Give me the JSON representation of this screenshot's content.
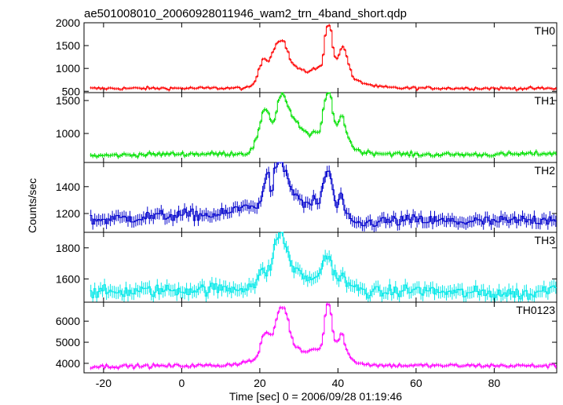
{
  "chart_data": {
    "type": "line",
    "title": "ae501008010_20060928011946_wam2_trn_4band_short.qdp",
    "xlabel": "Time [sec] 0 = 2006/09/28 01:19:46",
    "ylabel": "Counts/sec",
    "xlim": [
      -25,
      96
    ],
    "xticks": [
      -20,
      0,
      20,
      40,
      60,
      80
    ],
    "x_start": -23.5,
    "x_step": 0.5,
    "panels": [
      {
        "name": "TH0",
        "color": "#ff0000",
        "ylim": [
          470,
          2000
        ],
        "yticks": [
          500,
          1000,
          1500,
          2000
        ],
        "baseline": 560,
        "noise": 22,
        "anchors": [
          [
            -23.5,
            560
          ],
          [
            17,
            570
          ],
          [
            18,
            620
          ],
          [
            19,
            760
          ],
          [
            20,
            1020
          ],
          [
            21,
            1260
          ],
          [
            22,
            1150
          ],
          [
            23,
            1300
          ],
          [
            24,
            1500
          ],
          [
            25,
            1620
          ],
          [
            26,
            1640
          ],
          [
            27,
            1400
          ],
          [
            28,
            1150
          ],
          [
            29,
            1050
          ],
          [
            30,
            1000
          ],
          [
            31,
            950
          ],
          [
            32,
            900
          ],
          [
            33,
            980
          ],
          [
            34,
            1000
          ],
          [
            35,
            1000
          ],
          [
            36,
            1100
          ],
          [
            37,
            1900
          ],
          [
            38,
            2000
          ],
          [
            39,
            1300
          ],
          [
            40,
            1200
          ],
          [
            41,
            1500
          ],
          [
            42,
            1380
          ],
          [
            43,
            1000
          ],
          [
            44,
            780
          ],
          [
            45,
            720
          ],
          [
            47,
            670
          ],
          [
            50,
            600
          ],
          [
            55,
            570
          ],
          [
            96,
            560
          ]
        ]
      },
      {
        "name": "TH1",
        "color": "#00e000",
        "ylim": [
          560,
          1620
        ],
        "yticks": [
          1000,
          1500
        ],
        "baseline": 670,
        "noise": 22,
        "anchors": [
          [
            -23.5,
            660
          ],
          [
            -10,
            680
          ],
          [
            0,
            690
          ],
          [
            10,
            690
          ],
          [
            17,
            700
          ],
          [
            18,
            760
          ],
          [
            19,
            900
          ],
          [
            20,
            1100
          ],
          [
            21,
            1350
          ],
          [
            22,
            1380
          ],
          [
            23,
            1150
          ],
          [
            24,
            1250
          ],
          [
            25,
            1560
          ],
          [
            26,
            1620
          ],
          [
            27,
            1450
          ],
          [
            28,
            1300
          ],
          [
            29,
            1200
          ],
          [
            30,
            1120
          ],
          [
            31,
            1050
          ],
          [
            32,
            1000
          ],
          [
            33,
            960
          ],
          [
            34,
            1050
          ],
          [
            35,
            980
          ],
          [
            36,
            1250
          ],
          [
            37,
            1600
          ],
          [
            38,
            1620
          ],
          [
            39,
            1200
          ],
          [
            40,
            1100
          ],
          [
            41,
            1350
          ],
          [
            42,
            1050
          ],
          [
            43,
            900
          ],
          [
            44,
            780
          ],
          [
            46,
            720
          ],
          [
            50,
            700
          ],
          [
            60,
            680
          ],
          [
            80,
            680
          ],
          [
            96,
            700
          ]
        ]
      },
      {
        "name": "TH2",
        "color": "#0000cc",
        "ylim": [
          1060,
          1580
        ],
        "yticks": [
          1200,
          1400
        ],
        "baseline": 1160,
        "noise": 30,
        "anchors": [
          [
            -23.5,
            1150
          ],
          [
            0,
            1190
          ],
          [
            10,
            1190
          ],
          [
            16,
            1250
          ],
          [
            18,
            1280
          ],
          [
            19,
            1200
          ],
          [
            20,
            1300
          ],
          [
            21,
            1420
          ],
          [
            22,
            1500
          ],
          [
            23,
            1350
          ],
          [
            24,
            1550
          ],
          [
            25,
            1580
          ],
          [
            26,
            1560
          ],
          [
            27,
            1480
          ],
          [
            28,
            1380
          ],
          [
            29,
            1350
          ],
          [
            30,
            1320
          ],
          [
            31,
            1280
          ],
          [
            32,
            1250
          ],
          [
            33,
            1280
          ],
          [
            34,
            1300
          ],
          [
            35,
            1250
          ],
          [
            36,
            1400
          ],
          [
            37,
            1500
          ],
          [
            38,
            1520
          ],
          [
            39,
            1300
          ],
          [
            40,
            1250
          ],
          [
            41,
            1350
          ],
          [
            42,
            1200
          ],
          [
            43,
            1130
          ],
          [
            46,
            1120
          ],
          [
            50,
            1140
          ],
          [
            60,
            1150
          ],
          [
            70,
            1140
          ],
          [
            80,
            1140
          ],
          [
            90,
            1150
          ],
          [
            96,
            1170
          ]
        ]
      },
      {
        "name": "TH3",
        "color": "#00e8e8",
        "ylim": [
          1450,
          1900
        ],
        "yticks": [
          1600,
          1800
        ],
        "baseline": 1530,
        "noise": 28,
        "anchors": [
          [
            -23.5,
            1510
          ],
          [
            0,
            1530
          ],
          [
            15,
            1540
          ],
          [
            19,
            1570
          ],
          [
            20,
            1620
          ],
          [
            21,
            1660
          ],
          [
            22,
            1640
          ],
          [
            23,
            1700
          ],
          [
            24,
            1830
          ],
          [
            25,
            1900
          ],
          [
            26,
            1880
          ],
          [
            27,
            1780
          ],
          [
            28,
            1700
          ],
          [
            29,
            1660
          ],
          [
            30,
            1640
          ],
          [
            31,
            1620
          ],
          [
            32,
            1600
          ],
          [
            33,
            1620
          ],
          [
            34,
            1580
          ],
          [
            35,
            1620
          ],
          [
            36,
            1700
          ],
          [
            37,
            1760
          ],
          [
            38,
            1720
          ],
          [
            39,
            1650
          ],
          [
            40,
            1600
          ],
          [
            41,
            1620
          ],
          [
            42,
            1580
          ],
          [
            44,
            1540
          ],
          [
            50,
            1510
          ],
          [
            60,
            1530
          ],
          [
            70,
            1510
          ],
          [
            80,
            1510
          ],
          [
            90,
            1500
          ],
          [
            96,
            1560
          ]
        ]
      },
      {
        "name": "TH0123",
        "color": "#ff00ff",
        "ylim": [
          3550,
          6900
        ],
        "yticks": [
          4000,
          5000,
          6000
        ],
        "baseline": 3860,
        "noise": 60,
        "anchors": [
          [
            -23.5,
            3850
          ],
          [
            10,
            3900
          ],
          [
            15,
            4000
          ],
          [
            17,
            4100
          ],
          [
            18,
            4150
          ],
          [
            19,
            4200
          ],
          [
            20,
            4700
          ],
          [
            21,
            5400
          ],
          [
            22,
            5500
          ],
          [
            23,
            5200
          ],
          [
            24,
            5900
          ],
          [
            25,
            6600
          ],
          [
            26,
            6700
          ],
          [
            27,
            6300
          ],
          [
            28,
            5300
          ],
          [
            29,
            4800
          ],
          [
            30,
            4700
          ],
          [
            31,
            4600
          ],
          [
            32,
            4500
          ],
          [
            33,
            4700
          ],
          [
            34,
            4700
          ],
          [
            35,
            4600
          ],
          [
            36,
            5000
          ],
          [
            37,
            6800
          ],
          [
            38,
            6800
          ],
          [
            39,
            5100
          ],
          [
            40,
            5000
          ],
          [
            41,
            5500
          ],
          [
            42,
            4800
          ],
          [
            43,
            4300
          ],
          [
            44,
            4100
          ],
          [
            46,
            4000
          ],
          [
            50,
            3900
          ],
          [
            96,
            3880
          ]
        ]
      }
    ]
  }
}
